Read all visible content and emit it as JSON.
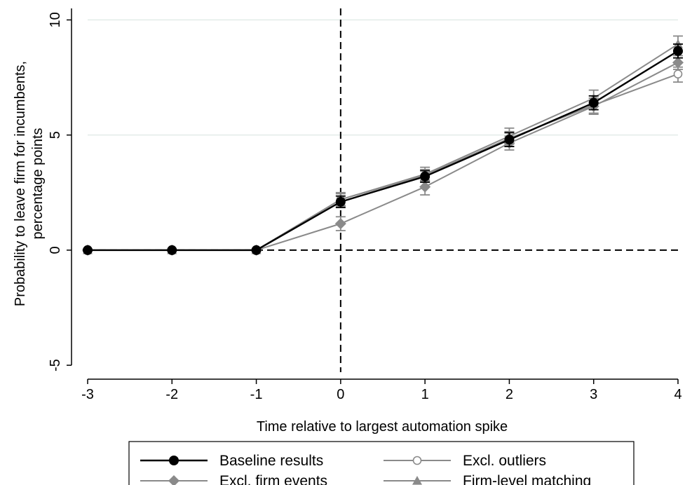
{
  "chart_data": {
    "type": "line",
    "xlabel": "Time relative to largest automation spike",
    "ylabel_lines": [
      "Probability to leave firm for incumbents,",
      "percentage points"
    ],
    "x": [
      -3,
      -2,
      -1,
      0,
      1,
      2,
      3,
      4
    ],
    "x_ticks": [
      "-3",
      "-2",
      "-1",
      "0",
      "1",
      "2",
      "3",
      "4"
    ],
    "y_ticks": [
      "-5",
      "0",
      "5",
      "10"
    ],
    "xlim": [
      -3,
      4
    ],
    "ylim": [
      -5.3,
      10.5
    ],
    "grid": "horizontal",
    "reference_lines": {
      "x": 0,
      "y": 0
    },
    "legend_position": "bottom",
    "series": [
      {
        "name": "Baseline results",
        "marker": "filled-circle",
        "color": "#000000",
        "values": [
          0,
          0,
          0,
          2.1,
          3.2,
          4.8,
          6.4,
          8.65
        ],
        "ci_low": [
          0,
          0,
          0,
          1.85,
          2.95,
          4.5,
          6.1,
          8.35
        ],
        "ci_high": [
          0,
          0,
          0,
          2.35,
          3.45,
          5.1,
          6.7,
          8.95
        ]
      },
      {
        "name": "Excl. outliers",
        "marker": "hollow-circle",
        "color": "#8a8a8a",
        "values": [
          0,
          0,
          0,
          2.2,
          3.25,
          4.85,
          6.3,
          7.65
        ],
        "ci_low": [
          0,
          0,
          0,
          1.95,
          3.0,
          4.5,
          5.95,
          7.3
        ],
        "ci_high": [
          0,
          0,
          0,
          2.45,
          3.5,
          5.15,
          6.6,
          7.95
        ]
      },
      {
        "name": "Excl. firm events",
        "marker": "diamond",
        "color": "#8a8a8a",
        "values": [
          0,
          0,
          0,
          1.15,
          2.75,
          4.65,
          6.25,
          8.15
        ],
        "ci_low": [
          0,
          0,
          0,
          0.85,
          2.4,
          4.35,
          5.9,
          7.85
        ],
        "ci_high": [
          0,
          0,
          0,
          1.45,
          3.05,
          4.95,
          6.6,
          8.45
        ]
      },
      {
        "name": "Firm-level matching",
        "marker": "triangle",
        "color": "#8a8a8a",
        "values": [
          0,
          0,
          0,
          2.2,
          3.3,
          4.95,
          6.6,
          8.95
        ],
        "ci_low": [
          0,
          0,
          0,
          1.9,
          3.0,
          4.6,
          6.25,
          8.6
        ],
        "ci_high": [
          0,
          0,
          0,
          2.5,
          3.6,
          5.3,
          6.95,
          9.3
        ]
      }
    ]
  }
}
